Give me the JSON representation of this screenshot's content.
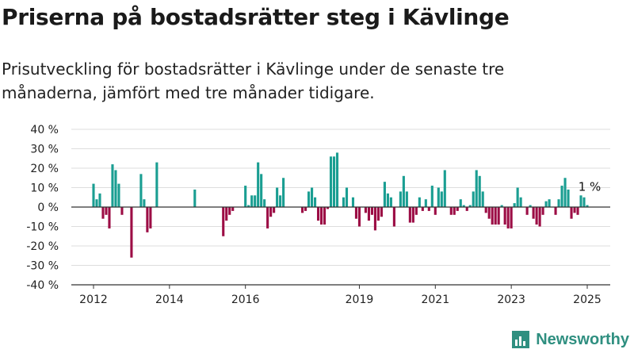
{
  "header": {
    "title": "Priserna på bostadsrätter steg i Kävlinge",
    "subtitle": "Prisutveckling för bostadsrätter i Kävlinge under de senaste tre månaderna, jämfört med tre månader tidigare."
  },
  "brand": {
    "name": "Newsworthy",
    "icon": "newsworthy-logo-icon"
  },
  "colors": {
    "positive": "#1a9e92",
    "negative": "#9c0d45",
    "grid": "#dddddd",
    "axis": "#333333"
  },
  "chart_data": {
    "type": "bar",
    "title": "",
    "xlabel": "",
    "ylabel": "",
    "ylim": [
      -40,
      40
    ],
    "ytick_values": [
      -40,
      -30,
      -20,
      -10,
      0,
      10,
      20,
      30,
      40
    ],
    "ytick_labels": [
      "-40 %",
      "-30 %",
      "-20 %",
      "-10 %",
      "0 %",
      "10 %",
      "20 %",
      "30 %",
      "40 %"
    ],
    "xtick_labels": [
      "2012",
      "2014",
      "2016",
      "2019",
      "2021",
      "2023",
      "2025"
    ],
    "xtick_dates": [
      "2012-01",
      "2014-01",
      "2016-01",
      "2019-01",
      "2021-01",
      "2023-01",
      "2025-01"
    ],
    "grid": true,
    "series": [
      {
        "points": [
          [
            "2012-01",
            12
          ],
          [
            "2012-02",
            4
          ],
          [
            "2012-03",
            7
          ],
          [
            "2012-04",
            -6
          ],
          [
            "2012-05",
            -4
          ],
          [
            "2012-06",
            -11
          ],
          [
            "2012-07",
            22
          ],
          [
            "2012-08",
            19
          ],
          [
            "2012-09",
            12
          ],
          [
            "2012-10",
            -4
          ],
          [
            "2013-01",
            -26
          ],
          [
            "2013-04",
            17
          ],
          [
            "2013-05",
            4
          ],
          [
            "2013-06",
            -13
          ],
          [
            "2013-07",
            -11
          ],
          [
            "2013-09",
            23
          ],
          [
            "2014-09",
            9
          ],
          [
            "2015-06",
            -15
          ],
          [
            "2015-07",
            -7
          ],
          [
            "2015-08",
            -4
          ],
          [
            "2015-09",
            -2
          ],
          [
            "2016-01",
            11
          ],
          [
            "2016-02",
            1
          ],
          [
            "2016-03",
            6
          ],
          [
            "2016-04",
            6
          ],
          [
            "2016-05",
            23
          ],
          [
            "2016-06",
            17
          ],
          [
            "2016-07",
            4
          ],
          [
            "2016-08",
            -11
          ],
          [
            "2016-09",
            -5
          ],
          [
            "2016-10",
            -3
          ],
          [
            "2016-11",
            10
          ],
          [
            "2016-12",
            6
          ],
          [
            "2017-01",
            15
          ],
          [
            "2017-07",
            -3
          ],
          [
            "2017-08",
            -2
          ],
          [
            "2017-09",
            8
          ],
          [
            "2017-10",
            10
          ],
          [
            "2017-11",
            5
          ],
          [
            "2017-12",
            -7
          ],
          [
            "2018-01",
            -9
          ],
          [
            "2018-02",
            -9
          ],
          [
            "2018-03",
            -1
          ],
          [
            "2018-04",
            26
          ],
          [
            "2018-05",
            26
          ],
          [
            "2018-06",
            28
          ],
          [
            "2018-08",
            5
          ],
          [
            "2018-09",
            10
          ],
          [
            "2018-11",
            5
          ],
          [
            "2018-12",
            -6
          ],
          [
            "2019-01",
            -10
          ],
          [
            "2019-03",
            -3
          ],
          [
            "2019-04",
            -7
          ],
          [
            "2019-05",
            -4
          ],
          [
            "2019-06",
            -12
          ],
          [
            "2019-07",
            -7
          ],
          [
            "2019-08",
            -5
          ],
          [
            "2019-09",
            13
          ],
          [
            "2019-10",
            7
          ],
          [
            "2019-11",
            5
          ],
          [
            "2019-12",
            -10
          ],
          [
            "2020-02",
            8
          ],
          [
            "2020-03",
            16
          ],
          [
            "2020-04",
            8
          ],
          [
            "2020-05",
            -8
          ],
          [
            "2020-06",
            -8
          ],
          [
            "2020-07",
            -4
          ],
          [
            "2020-08",
            5
          ],
          [
            "2020-09",
            -2
          ],
          [
            "2020-10",
            4
          ],
          [
            "2020-11",
            -2
          ],
          [
            "2020-12",
            11
          ],
          [
            "2021-01",
            -4
          ],
          [
            "2021-02",
            10
          ],
          [
            "2021-03",
            8
          ],
          [
            "2021-04",
            19
          ],
          [
            "2021-06",
            -4
          ],
          [
            "2021-07",
            -4
          ],
          [
            "2021-08",
            -2
          ],
          [
            "2021-09",
            4
          ],
          [
            "2021-10",
            1
          ],
          [
            "2021-11",
            -2
          ],
          [
            "2021-12",
            1
          ],
          [
            "2022-01",
            8
          ],
          [
            "2022-02",
            19
          ],
          [
            "2022-03",
            16
          ],
          [
            "2022-04",
            8
          ],
          [
            "2022-05",
            -3
          ],
          [
            "2022-06",
            -6
          ],
          [
            "2022-07",
            -9
          ],
          [
            "2022-08",
            -9
          ],
          [
            "2022-09",
            -9
          ],
          [
            "2022-10",
            1
          ],
          [
            "2022-11",
            -9
          ],
          [
            "2022-12",
            -11
          ],
          [
            "2023-01",
            -11
          ],
          [
            "2023-02",
            2
          ],
          [
            "2023-03",
            10
          ],
          [
            "2023-04",
            5
          ],
          [
            "2023-06",
            -4
          ],
          [
            "2023-07",
            1
          ],
          [
            "2023-08",
            -6
          ],
          [
            "2023-09",
            -9
          ],
          [
            "2023-10",
            -10
          ],
          [
            "2023-11",
            -4
          ],
          [
            "2023-12",
            3
          ],
          [
            "2024-01",
            4
          ],
          [
            "2024-03",
            -4
          ],
          [
            "2024-04",
            4
          ],
          [
            "2024-05",
            11
          ],
          [
            "2024-06",
            15
          ],
          [
            "2024-07",
            9
          ],
          [
            "2024-08",
            -6
          ],
          [
            "2024-09",
            -3
          ],
          [
            "2024-10",
            -4
          ],
          [
            "2024-11",
            6
          ],
          [
            "2024-12",
            5
          ],
          [
            "2025-01",
            1
          ]
        ]
      }
    ],
    "annotations": [
      {
        "x": "2025-01",
        "y": 1,
        "label": "1 %"
      }
    ]
  }
}
